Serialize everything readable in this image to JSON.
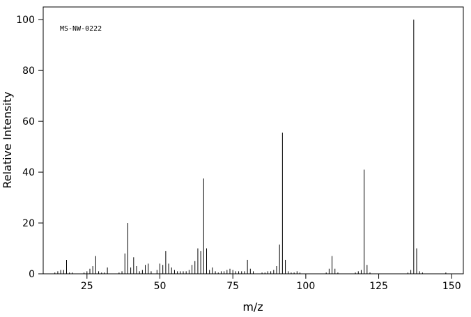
{
  "chart_data": {
    "type": "spectrum",
    "annotation": "MS-NW-0222",
    "xlabel": "m/z",
    "ylabel": "Relative Intensity",
    "xlim": [
      10,
      154
    ],
    "ylim": [
      0,
      105
    ],
    "xticks": [
      25,
      50,
      75,
      100,
      125,
      150
    ],
    "yticks": [
      0,
      20,
      40,
      60,
      80,
      100
    ],
    "color": "#000000",
    "x": [
      14,
      15,
      16,
      17,
      18,
      19,
      20,
      24,
      25,
      26,
      27,
      28,
      29,
      30,
      31,
      32,
      36,
      37,
      38,
      39,
      40,
      41,
      42,
      43,
      44,
      45,
      46,
      47,
      49,
      50,
      51,
      52,
      53,
      54,
      55,
      56,
      57,
      58,
      59,
      60,
      61,
      62,
      63,
      64,
      65,
      66,
      67,
      68,
      69,
      70,
      71,
      72,
      73,
      74,
      75,
      76,
      77,
      78,
      79,
      80,
      81,
      82,
      85,
      86,
      87,
      88,
      89,
      90,
      91,
      92,
      93,
      94,
      95,
      96,
      97,
      98,
      107,
      108,
      109,
      110,
      111,
      117,
      118,
      119,
      120,
      121,
      122,
      135,
      136,
      137,
      138,
      139,
      140,
      148
    ],
    "values": [
      0.5,
      1,
      1.5,
      1.5,
      5.5,
      0.5,
      0.5,
      0.5,
      1,
      2,
      3,
      7,
      1,
      0.5,
      0.5,
      2.5,
      0.5,
      1,
      8,
      20,
      2.5,
      6.5,
      3,
      1,
      1.5,
      3.5,
      4,
      1,
      1.5,
      4,
      3.5,
      9,
      4,
      2.5,
      1.5,
      1,
      1,
      1,
      1,
      1.5,
      3.5,
      5,
      10,
      9,
      37.5,
      10,
      1.5,
      2.5,
      1,
      0.5,
      1,
      1,
      1.5,
      2,
      1.5,
      1,
      1,
      1,
      1,
      5.5,
      2,
      1,
      0.5,
      0.5,
      1,
      1,
      1.5,
      3,
      11.5,
      55.5,
      5.5,
      1,
      0.5,
      0.5,
      1,
      0.5,
      0.5,
      2,
      7,
      2,
      0.5,
      0.5,
      1,
      1.5,
      41,
      3.5,
      0.5,
      0.5,
      1.5,
      100,
      10,
      1,
      0.5,
      0.5
    ]
  }
}
